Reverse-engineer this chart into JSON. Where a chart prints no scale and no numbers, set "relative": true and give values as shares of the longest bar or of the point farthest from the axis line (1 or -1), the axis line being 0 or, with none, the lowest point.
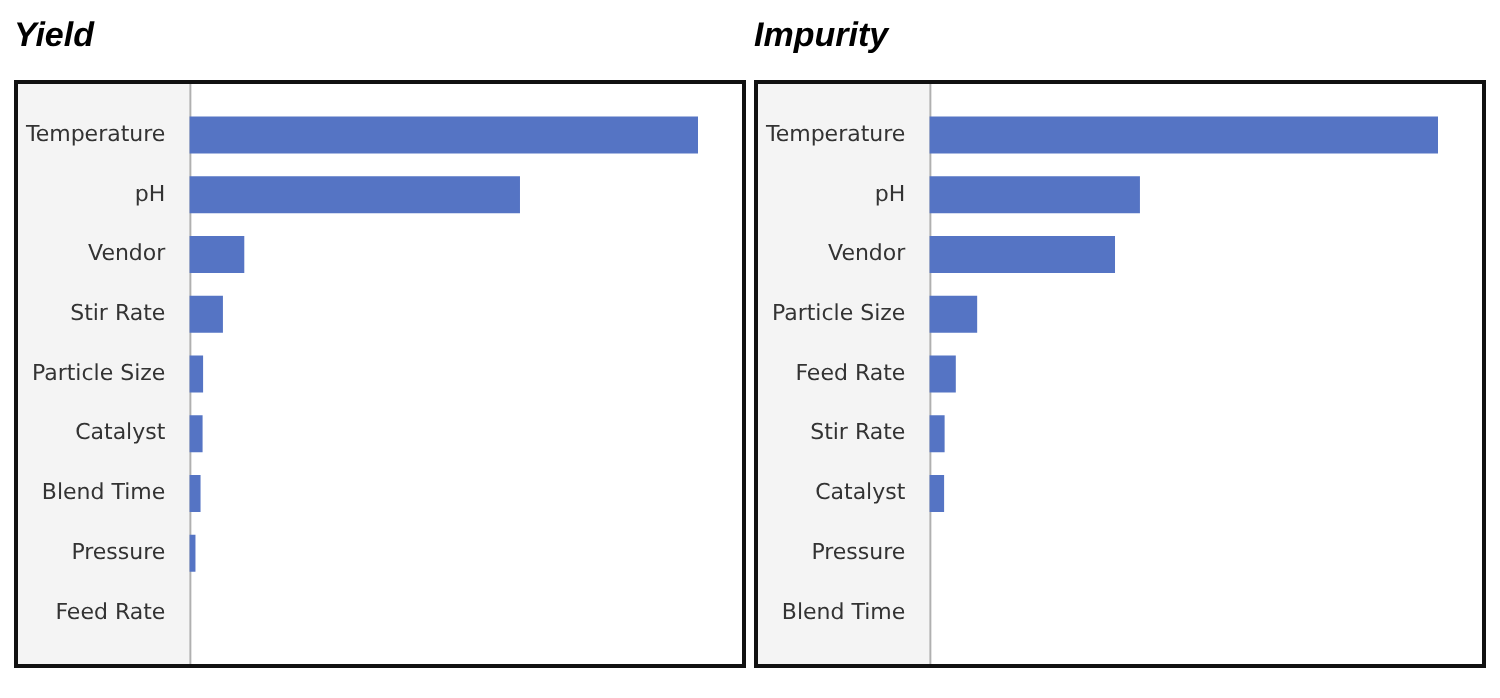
{
  "chart_data": [
    {
      "type": "bar",
      "title": "Yield",
      "orientation": "horizontal",
      "relative": true,
      "legend": false,
      "categories": [
        "Temperature",
        "pH",
        "Vendor",
        "Stir Rate",
        "Particle Size",
        "Catalyst",
        "Blend Time",
        "Pressure",
        "Feed Rate"
      ],
      "color": "#5574c4",
      "values": [
        1,
        0.65,
        0.108,
        0.066,
        0.027,
        0.026,
        0.022,
        0.012,
        0
      ]
    },
    {
      "type": "bar",
      "title": "Impurity",
      "orientation": "horizontal",
      "relative": true,
      "legend": false,
      "categories": [
        "Temperature",
        "pH",
        "Vendor",
        "Particle Size",
        "Feed Rate",
        "Stir Rate",
        "Catalyst",
        "Pressure",
        "Blend Time"
      ],
      "color": "#5574c4",
      "values": [
        1,
        0.414,
        0.365,
        0.094,
        0.052,
        0.03,
        0.029,
        0,
        0
      ]
    }
  ]
}
